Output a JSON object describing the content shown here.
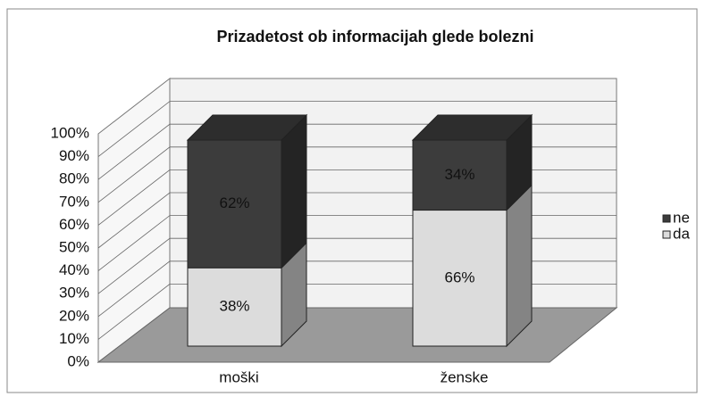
{
  "chart_data": {
    "type": "bar3d_stacked",
    "title": "Prizadetost ob  informacijah glede bolezni",
    "categories": [
      "moški",
      "ženske"
    ],
    "series": [
      {
        "name": "da",
        "color": "#dcdcdc",
        "values": [
          38,
          66
        ],
        "value_labels": [
          "38%",
          "66%"
        ]
      },
      {
        "name": "ne",
        "color": "#3c3c3c",
        "values": [
          62,
          34
        ],
        "value_labels": [
          "62%",
          "34%"
        ]
      }
    ],
    "ylim": [
      0,
      100
    ],
    "yticks": [
      {
        "value": 0,
        "label": "0%"
      },
      {
        "value": 10,
        "label": "10%"
      },
      {
        "value": 20,
        "label": "20%"
      },
      {
        "value": 30,
        "label": "30%"
      },
      {
        "value": 40,
        "label": "40%"
      },
      {
        "value": 50,
        "label": "50%"
      },
      {
        "value": 60,
        "label": "60%"
      },
      {
        "value": 70,
        "label": "70%"
      },
      {
        "value": 80,
        "label": "80%"
      },
      {
        "value": 90,
        "label": "90%"
      },
      {
        "value": 100,
        "label": "100%"
      }
    ],
    "grid": true,
    "legend": "right"
  }
}
